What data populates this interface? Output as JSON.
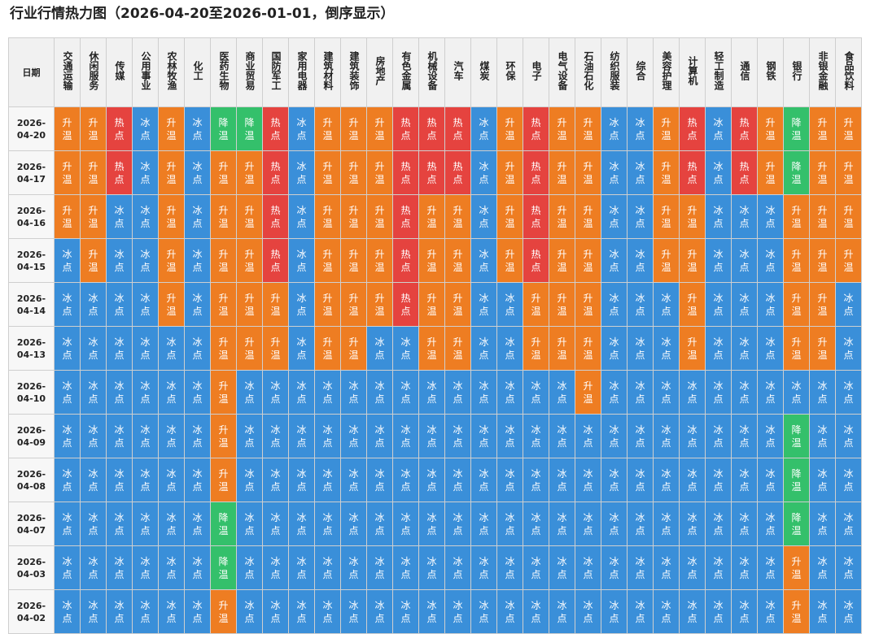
{
  "title": "行业行情热力图（2026-04-20至2026-01-01，倒序显示）",
  "colors": {
    "冰点": "#3a8fd9",
    "升温": "#ee7d22",
    "热点": "#e5433f",
    "降温": "#34c06b"
  },
  "chart_data": {
    "type": "heatmap",
    "title": "行业行情热力图（2026-04-20至2026-01-01，倒序显示）",
    "corner_label": "日期",
    "industries": [
      "交通运输",
      "休闲服务",
      "传媒",
      "公用事业",
      "农林牧渔",
      "化工",
      "医药生物",
      "商业贸易",
      "国防军工",
      "家用电器",
      "建筑材料",
      "建筑装饰",
      "房地产",
      "有色金属",
      "机械设备",
      "汽车",
      "煤炭",
      "环保",
      "电子",
      "电气设备",
      "石油石化",
      "纺织服装",
      "综合",
      "美容护理",
      "计算机",
      "轻工制造",
      "通信",
      "钢铁",
      "银行",
      "非银金融",
      "食品饮料"
    ],
    "rows": [
      {
        "date": [
          "2026-",
          "04-20"
        ],
        "values": [
          "升温",
          "升温",
          "热点",
          "冰点",
          "升温",
          "冰点",
          "降温",
          "降温",
          "热点",
          "冰点",
          "升温",
          "升温",
          "升温",
          "热点",
          "热点",
          "热点",
          "冰点",
          "升温",
          "热点",
          "升温",
          "升温",
          "冰点",
          "冰点",
          "升温",
          "热点",
          "冰点",
          "热点",
          "升温",
          "降温",
          "升温",
          "升温"
        ]
      },
      {
        "date": [
          "2026-",
          "04-17"
        ],
        "values": [
          "升温",
          "升温",
          "热点",
          "冰点",
          "升温",
          "冰点",
          "升温",
          "升温",
          "热点",
          "冰点",
          "升温",
          "升温",
          "升温",
          "热点",
          "热点",
          "热点",
          "冰点",
          "升温",
          "热点",
          "升温",
          "升温",
          "冰点",
          "冰点",
          "升温",
          "热点",
          "冰点",
          "热点",
          "升温",
          "降温",
          "升温",
          "升温"
        ]
      },
      {
        "date": [
          "2026-",
          "04-16"
        ],
        "values": [
          "升温",
          "升温",
          "冰点",
          "冰点",
          "升温",
          "冰点",
          "升温",
          "升温",
          "热点",
          "冰点",
          "升温",
          "升温",
          "升温",
          "热点",
          "升温",
          "升温",
          "冰点",
          "升温",
          "热点",
          "升温",
          "升温",
          "冰点",
          "冰点",
          "升温",
          "升温",
          "冰点",
          "冰点",
          "冰点",
          "升温",
          "升温",
          "升温"
        ]
      },
      {
        "date": [
          "2026-",
          "04-15"
        ],
        "values": [
          "冰点",
          "升温",
          "冰点",
          "冰点",
          "升温",
          "冰点",
          "升温",
          "升温",
          "热点",
          "冰点",
          "升温",
          "升温",
          "升温",
          "热点",
          "升温",
          "升温",
          "冰点",
          "升温",
          "热点",
          "升温",
          "升温",
          "冰点",
          "冰点",
          "升温",
          "升温",
          "冰点",
          "冰点",
          "冰点",
          "升温",
          "升温",
          "升温"
        ]
      },
      {
        "date": [
          "2026-",
          "04-14"
        ],
        "values": [
          "冰点",
          "冰点",
          "冰点",
          "冰点",
          "升温",
          "冰点",
          "升温",
          "升温",
          "升温",
          "冰点",
          "升温",
          "升温",
          "升温",
          "热点",
          "升温",
          "升温",
          "冰点",
          "冰点",
          "升温",
          "升温",
          "升温",
          "冰点",
          "冰点",
          "冰点",
          "升温",
          "冰点",
          "冰点",
          "冰点",
          "升温",
          "升温",
          "冰点"
        ]
      },
      {
        "date": [
          "2026-",
          "04-13"
        ],
        "values": [
          "冰点",
          "冰点",
          "冰点",
          "冰点",
          "冰点",
          "冰点",
          "升温",
          "升温",
          "升温",
          "冰点",
          "升温",
          "升温",
          "冰点",
          "冰点",
          "升温",
          "升温",
          "冰点",
          "冰点",
          "升温",
          "升温",
          "升温",
          "冰点",
          "冰点",
          "冰点",
          "升温",
          "冰点",
          "冰点",
          "冰点",
          "升温",
          "升温",
          "冰点"
        ]
      },
      {
        "date": [
          "2026-",
          "04-10"
        ],
        "values": [
          "冰点",
          "冰点",
          "冰点",
          "冰点",
          "冰点",
          "冰点",
          "升温",
          "冰点",
          "冰点",
          "冰点",
          "冰点",
          "冰点",
          "冰点",
          "冰点",
          "冰点",
          "冰点",
          "冰点",
          "冰点",
          "冰点",
          "冰点",
          "升温",
          "冰点",
          "冰点",
          "冰点",
          "冰点",
          "冰点",
          "冰点",
          "冰点",
          "冰点",
          "冰点",
          "冰点"
        ]
      },
      {
        "date": [
          "2026-",
          "04-09"
        ],
        "values": [
          "冰点",
          "冰点",
          "冰点",
          "冰点",
          "冰点",
          "冰点",
          "升温",
          "冰点",
          "冰点",
          "冰点",
          "冰点",
          "冰点",
          "冰点",
          "冰点",
          "冰点",
          "冰点",
          "冰点",
          "冰点",
          "冰点",
          "冰点",
          "冰点",
          "冰点",
          "冰点",
          "冰点",
          "冰点",
          "冰点",
          "冰点",
          "冰点",
          "降温",
          "冰点",
          "冰点"
        ]
      },
      {
        "date": [
          "2026-",
          "04-08"
        ],
        "values": [
          "冰点",
          "冰点",
          "冰点",
          "冰点",
          "冰点",
          "冰点",
          "升温",
          "冰点",
          "冰点",
          "冰点",
          "冰点",
          "冰点",
          "冰点",
          "冰点",
          "冰点",
          "冰点",
          "冰点",
          "冰点",
          "冰点",
          "冰点",
          "冰点",
          "冰点",
          "冰点",
          "冰点",
          "冰点",
          "冰点",
          "冰点",
          "冰点",
          "降温",
          "冰点",
          "冰点"
        ]
      },
      {
        "date": [
          "2026-",
          "04-07"
        ],
        "values": [
          "冰点",
          "冰点",
          "冰点",
          "冰点",
          "冰点",
          "冰点",
          "降温",
          "冰点",
          "冰点",
          "冰点",
          "冰点",
          "冰点",
          "冰点",
          "冰点",
          "冰点",
          "冰点",
          "冰点",
          "冰点",
          "冰点",
          "冰点",
          "冰点",
          "冰点",
          "冰点",
          "冰点",
          "冰点",
          "冰点",
          "冰点",
          "冰点",
          "降温",
          "冰点",
          "冰点"
        ]
      },
      {
        "date": [
          "2026-",
          "04-03"
        ],
        "values": [
          "冰点",
          "冰点",
          "冰点",
          "冰点",
          "冰点",
          "冰点",
          "降温",
          "冰点",
          "冰点",
          "冰点",
          "冰点",
          "冰点",
          "冰点",
          "冰点",
          "冰点",
          "冰点",
          "冰点",
          "冰点",
          "冰点",
          "冰点",
          "冰点",
          "冰点",
          "冰点",
          "冰点",
          "冰点",
          "冰点",
          "冰点",
          "冰点",
          "升温",
          "冰点",
          "冰点"
        ]
      },
      {
        "date": [
          "2026-",
          "04-02"
        ],
        "values": [
          "冰点",
          "冰点",
          "冰点",
          "冰点",
          "冰点",
          "冰点",
          "升温",
          "冰点",
          "冰点",
          "冰点",
          "冰点",
          "冰点",
          "冰点",
          "冰点",
          "冰点",
          "冰点",
          "冰点",
          "冰点",
          "冰点",
          "冰点",
          "冰点",
          "冰点",
          "冰点",
          "冰点",
          "冰点",
          "冰点",
          "冰点",
          "冰点",
          "升温",
          "冰点",
          "冰点"
        ]
      }
    ]
  }
}
